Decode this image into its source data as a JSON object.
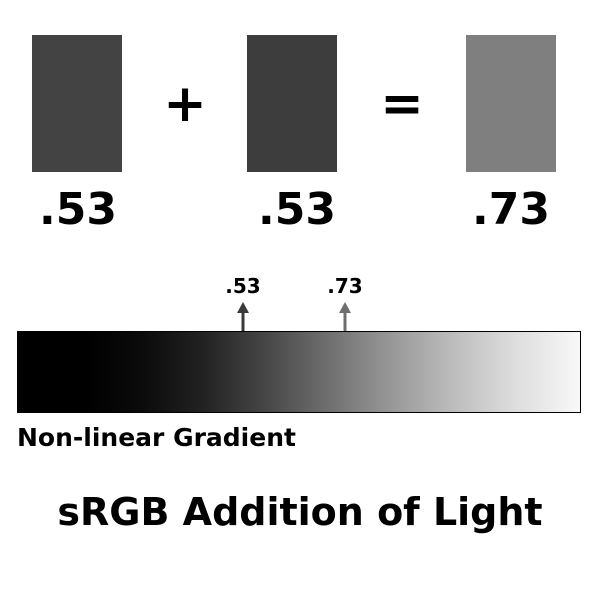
{
  "swatches": [
    {
      "color": "#434343"
    },
    {
      "color": "#3d3d3d"
    },
    {
      "color": "#7f7f7f"
    }
  ],
  "operators": {
    "plus": "+",
    "equals": "="
  },
  "values": [
    ".53",
    ".53",
    ".73"
  ],
  "markers": [
    {
      "label": ".53",
      "color": "#3a3a3a"
    },
    {
      "label": ".73",
      "color": "#6e6e6e"
    }
  ],
  "gradient": {
    "caption": "Non-linear Gradient"
  },
  "title": "sRGB Addition of Light"
}
